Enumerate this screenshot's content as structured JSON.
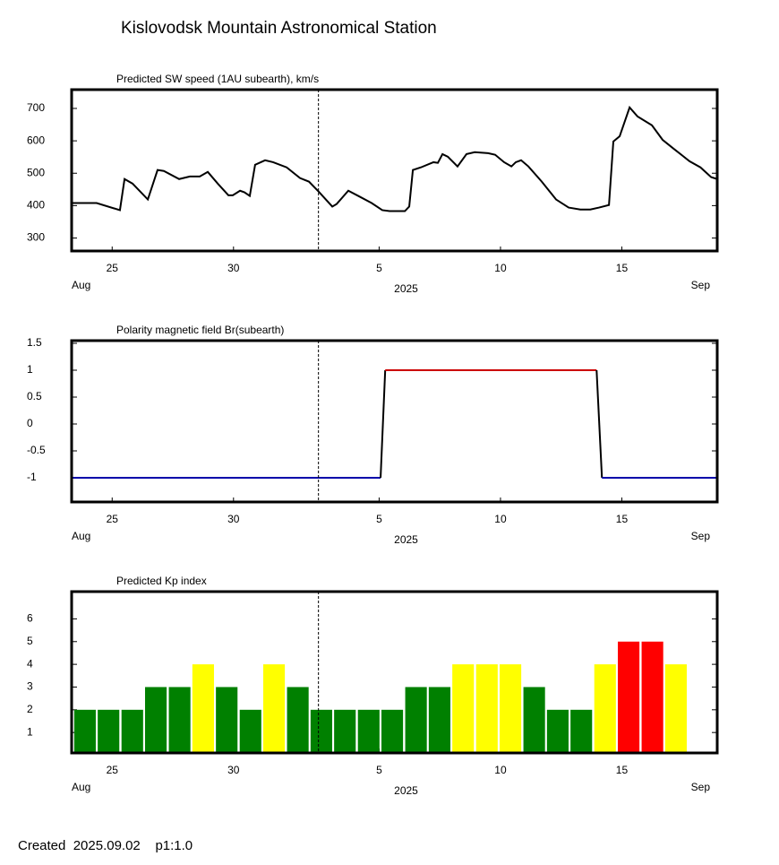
{
  "title": "Kislovodsk Mountain Astronomical Station",
  "footer": "Created  2025.09.02    p1:1.0",
  "chart_data": [
    {
      "type": "line",
      "title": "Predicted SW speed (1AU subearth), km/s",
      "color": "#000000",
      "x": [
        23.33,
        24.36,
        25.32,
        25.51,
        25.84,
        26.47,
        26.87,
        27.13,
        27.76,
        28.2,
        28.61,
        28.94,
        29.35,
        29.79,
        29.97,
        30.27,
        30.45,
        30.67,
        30.89,
        31.3,
        31.63,
        32.19,
        32.74,
        33.11,
        33.51,
        34.07,
        34.25,
        34.73,
        35.14,
        35.69,
        36.13,
        36.43,
        37.06,
        37.24,
        37.39,
        37.72,
        38.24,
        38.42,
        38.61,
        38.83,
        39.23,
        39.6,
        39.94,
        40.49,
        40.78,
        41.15,
        41.45,
        41.63,
        41.85,
        42.15,
        42.7,
        43.29,
        43.81,
        44.29,
        44.7,
        45.06,
        45.47,
        45.65,
        45.91,
        46.32,
        46.65,
        47.24,
        47.68,
        48.13,
        48.79,
        49.24,
        49.68,
        49.93
      ],
      "values": [
        408,
        408,
        386,
        482,
        468,
        419,
        510,
        507,
        482,
        490,
        490,
        504,
        468,
        432,
        432,
        446,
        441,
        430,
        526,
        540,
        534,
        518,
        485,
        474,
        443,
        397,
        405,
        446,
        430,
        408,
        386,
        383,
        383,
        397,
        510,
        518,
        534,
        532,
        559,
        551,
        521,
        559,
        565,
        562,
        557,
        534,
        521,
        534,
        540,
        521,
        474,
        419,
        394,
        388,
        388,
        394,
        402,
        598,
        614,
        703,
        675,
        648,
        603,
        576,
        537,
        518,
        488,
        482
      ],
      "xlim": [
        23.33,
        49.93
      ],
      "ylim": [
        260,
        758
      ],
      "yticks": [
        300,
        400,
        500,
        600,
        700
      ],
      "xticks": [
        25,
        30,
        {
          "value": 36,
          "label": "5"
        },
        {
          "value": 41,
          "label": "10"
        },
        {
          "value": 46,
          "label": "15"
        }
      ],
      "x_sublabels": [
        "Aug",
        "2025",
        "Sep"
      ],
      "now_x": 33.5
    },
    {
      "type": "polarity",
      "title": "Polarity magnetic field  Br(subearth)",
      "pos_color": "#cc0000",
      "neg_color": "#0000aa",
      "cross_color": "#000000",
      "x": [
        23.33,
        36.06,
        36.25,
        44.96,
        45.18,
        49.93
      ],
      "values": [
        -1,
        -1,
        1,
        1,
        -1,
        -1
      ],
      "xlim": [
        23.33,
        49.93
      ],
      "ylim": [
        -1.45,
        1.55
      ],
      "yticks": [
        1.5,
        1,
        0.5,
        0,
        -0.5,
        -1
      ],
      "xticks": [
        25,
        30,
        {
          "value": 36,
          "label": "5"
        },
        {
          "value": 41,
          "label": "10"
        },
        {
          "value": 46,
          "label": "15"
        }
      ],
      "x_sublabels": [
        "Aug",
        "2025",
        "Sep"
      ],
      "now_x": 33.5
    },
    {
      "type": "bar",
      "title": "Predicted Kp index",
      "bar_width": 0.89,
      "x": [
        23.88,
        24.85,
        25.83,
        26.8,
        27.78,
        28.75,
        29.72,
        30.7,
        31.67,
        32.65,
        33.62,
        34.59,
        35.57,
        36.54,
        37.52,
        38.49,
        39.46,
        40.44,
        41.41,
        42.39,
        43.36,
        44.33,
        45.31,
        46.28,
        47.26,
        48.23
      ],
      "values": [
        2,
        2,
        2,
        3,
        3,
        4,
        3,
        2,
        4,
        3,
        2,
        2,
        2,
        2,
        3,
        3,
        4,
        4,
        4,
        3,
        2,
        2,
        4,
        5,
        5,
        4
      ],
      "colors": [
        "#008000",
        "#008000",
        "#008000",
        "#008000",
        "#008000",
        "#ffff00",
        "#008000",
        "#008000",
        "#ffff00",
        "#008000",
        "#008000",
        "#008000",
        "#008000",
        "#008000",
        "#008000",
        "#008000",
        "#ffff00",
        "#ffff00",
        "#ffff00",
        "#008000",
        "#008000",
        "#008000",
        "#ffff00",
        "#ff0000",
        "#ff0000",
        "#ffff00"
      ],
      "xlim": [
        23.33,
        49.93
      ],
      "ylim": [
        0.1,
        7.2
      ],
      "yticks": [
        1,
        2,
        3,
        4,
        5,
        6
      ],
      "xticks": [
        25,
        30,
        {
          "value": 36,
          "label": "5"
        },
        {
          "value": 41,
          "label": "10"
        },
        {
          "value": 46,
          "label": "15"
        }
      ],
      "x_sublabels": [
        "Aug",
        "2025",
        "Sep"
      ],
      "now_x": 33.5
    }
  ]
}
